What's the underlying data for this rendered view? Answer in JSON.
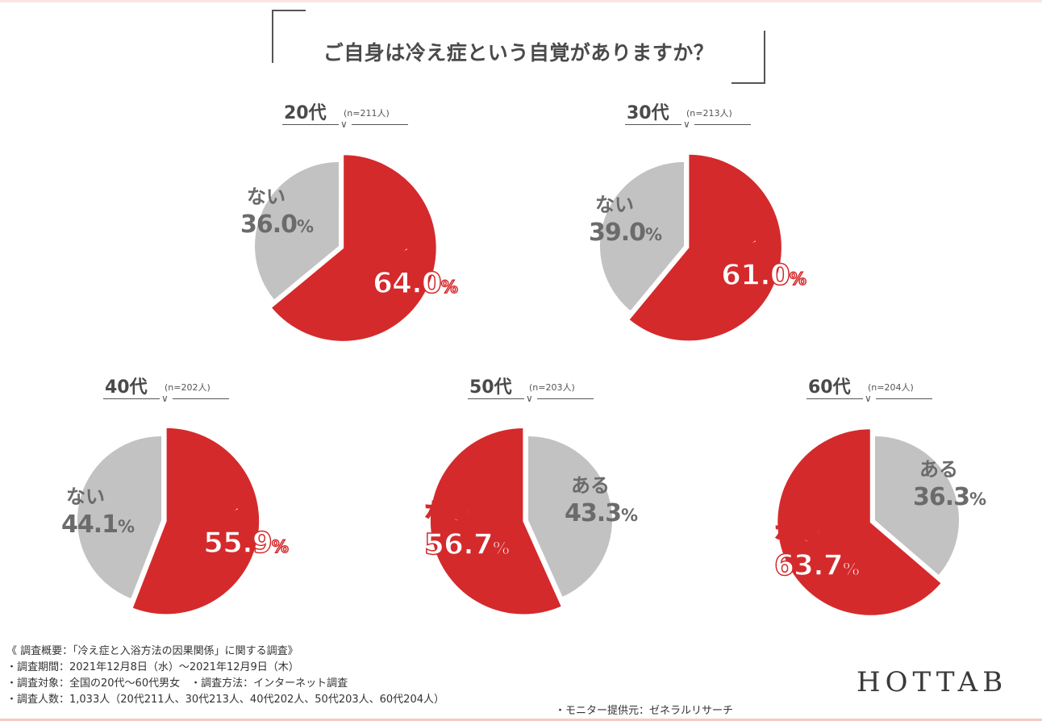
{
  "title": "ご自身は冷え症という自覚がありますか？",
  "colors": {
    "aru_accent": "#d42a2c",
    "nai_neutral": "#c2c2c2",
    "text": "#4a4a4a"
  },
  "groups": [
    {
      "age": "20代",
      "n": "(n=211人)",
      "aru": "64.0",
      "nai": "36.0"
    },
    {
      "age": "30代",
      "n": "(n=213人)",
      "aru": "61.0",
      "nai": "39.0"
    },
    {
      "age": "40代",
      "n": "(n=202人)",
      "aru": "55.9",
      "nai": "44.1"
    },
    {
      "age": "50代",
      "n": "(n=203人)",
      "aru": "43.3",
      "nai": "56.7"
    },
    {
      "age": "60代",
      "n": "(n=204人)",
      "aru": "36.3",
      "nai": "63.7"
    }
  ],
  "labels": {
    "aru": "ある",
    "nai": "ない",
    "pct": "%",
    "chevron": "∨"
  },
  "notes": {
    "summary": "《 調査概要：「冷え症と入浴方法の因果関係」に関する調査》",
    "period": "・調査期間：2021年12月8日（水）～2021年12月9日（木）",
    "target": "・調査対象：全国の20代～60代男女　・調査方法：インターネット調査",
    "count": "・調査人数：1,033人（20代211人、30代213人、40代202人、50代203人、60代204人）",
    "monitor": "・モニター提供元：ゼネラルリサーチ"
  },
  "brand": "HOTTAB",
  "chart_data": {
    "type": "pie",
    "title": "ご自身は冷え症という自覚がありますか？",
    "legend": [
      "ある",
      "ない"
    ],
    "series": [
      {
        "name": "20代 (n=211人)",
        "categories": [
          "ある",
          "ない"
        ],
        "values": [
          64.0,
          36.0
        ]
      },
      {
        "name": "30代 (n=213人)",
        "categories": [
          "ある",
          "ない"
        ],
        "values": [
          61.0,
          39.0
        ]
      },
      {
        "name": "40代 (n=202人)",
        "categories": [
          "ある",
          "ない"
        ],
        "values": [
          55.9,
          44.1
        ]
      },
      {
        "name": "50代 (n=203人)",
        "categories": [
          "ある",
          "ない"
        ],
        "values": [
          43.3,
          56.7
        ]
      },
      {
        "name": "60代 (n=204人)",
        "categories": [
          "ある",
          "ない"
        ],
        "values": [
          36.3,
          63.7
        ]
      }
    ],
    "unit": "%",
    "highlight": "majority slice shown in red"
  }
}
